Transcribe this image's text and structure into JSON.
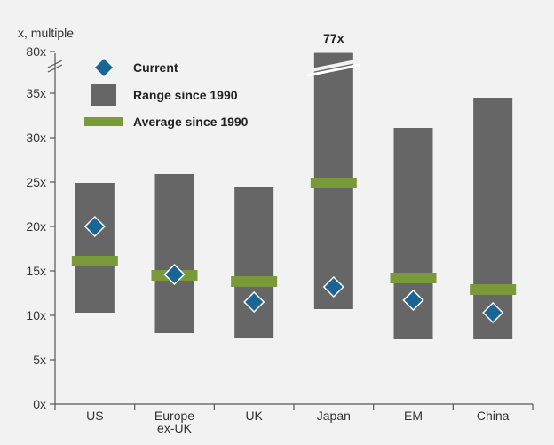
{
  "chart_data": {
    "type": "bar",
    "ylabel": "x, multiple",
    "categories": [
      [
        "US"
      ],
      [
        "Europe",
        "ex-UK"
      ],
      [
        "UK"
      ],
      [
        "Japan"
      ],
      [
        "EM"
      ],
      [
        "China"
      ]
    ],
    "category_labels": [
      "US",
      "Europe ex-UK",
      "UK",
      "Japan",
      "EM",
      "China"
    ],
    "ylim": [
      0,
      80
    ],
    "axis_break": [
      37.5,
      78
    ],
    "y_ticks": [
      0,
      5,
      10,
      15,
      20,
      25,
      30,
      35,
      80
    ],
    "y_tick_labels": [
      "0x",
      "5x",
      "10x",
      "15x",
      "20x",
      "25x",
      "30x",
      "35x",
      "80x"
    ],
    "series": [
      {
        "name": "Range since 1990",
        "kind": "range",
        "low": [
          10.3,
          8.0,
          7.5,
          10.7,
          7.3,
          7.3
        ],
        "high": [
          24.9,
          25.9,
          24.4,
          77,
          31.1,
          34.5
        ]
      },
      {
        "name": "Average since 1990",
        "kind": "average",
        "values": [
          16.1,
          14.5,
          13.8,
          24.9,
          14.2,
          12.9
        ]
      },
      {
        "name": "Current",
        "kind": "current",
        "values": [
          20.0,
          14.6,
          11.5,
          13.2,
          11.7,
          10.3
        ]
      }
    ],
    "annotations": [
      {
        "category": "Japan",
        "text": "77x"
      }
    ],
    "legend": {
      "position": "top-left",
      "items": [
        "Current",
        "Range since 1990",
        "Average since 1990"
      ]
    },
    "colors": {
      "range": "#666666",
      "average": "#7a9a3a",
      "current": "#1a6496",
      "background": "#f2f2f2",
      "axis": "#555555"
    },
    "grid": false
  }
}
